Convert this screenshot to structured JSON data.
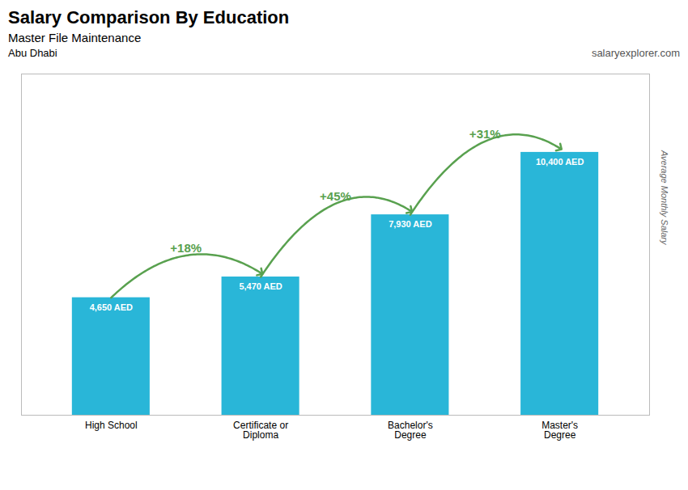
{
  "chart_data": {
    "type": "bar",
    "title": "Salary Comparison By Education",
    "subtitle": "Master File Maintenance",
    "ylabel": "Average Monthly Salary",
    "categories": [
      "High School",
      "Certificate or\nDiploma",
      "Bachelor's\nDegree",
      "Master's\nDegree"
    ],
    "values": [
      4650,
      5470,
      7930,
      10400
    ],
    "value_labels": [
      "4,650 AED",
      "5,470 AED",
      "7,930 AED",
      "10,400 AED"
    ],
    "data_labels": true,
    "color": "#29b6d8",
    "ylim": [
      0,
      13500
    ],
    "yticks": [],
    "tick_labels": "x",
    "grid": false,
    "annotations": [
      {
        "text": "Abu Dhabi"
      },
      {
        "text": "salaryexplorer.com"
      },
      {
        "text": "+18%",
        "from": "High School",
        "to": "Certificate or\nDiploma"
      },
      {
        "text": "+45%",
        "from": "Certificate or\nDiploma",
        "to": "Bachelor's\nDegree"
      },
      {
        "text": "+31%",
        "from": "Bachelor's\nDegree",
        "to": "Master's\nDegree"
      }
    ]
  }
}
